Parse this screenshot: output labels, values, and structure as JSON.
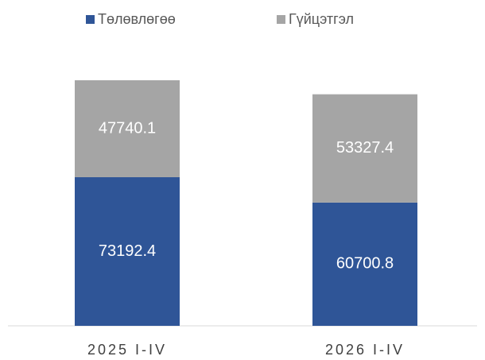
{
  "chart_data": {
    "type": "stacked_bar",
    "categories": [
      "2025 I-IV",
      "2026 I-IV"
    ],
    "series": [
      {
        "name": "Төлөвлөгөө",
        "color": "#2f5597",
        "values": [
          73192.4,
          60700.8
        ]
      },
      {
        "name": "Гүйцэтгэл",
        "color": "#a5a5a5",
        "values": [
          47740.1,
          53327.4
        ]
      }
    ],
    "legend": "top"
  }
}
